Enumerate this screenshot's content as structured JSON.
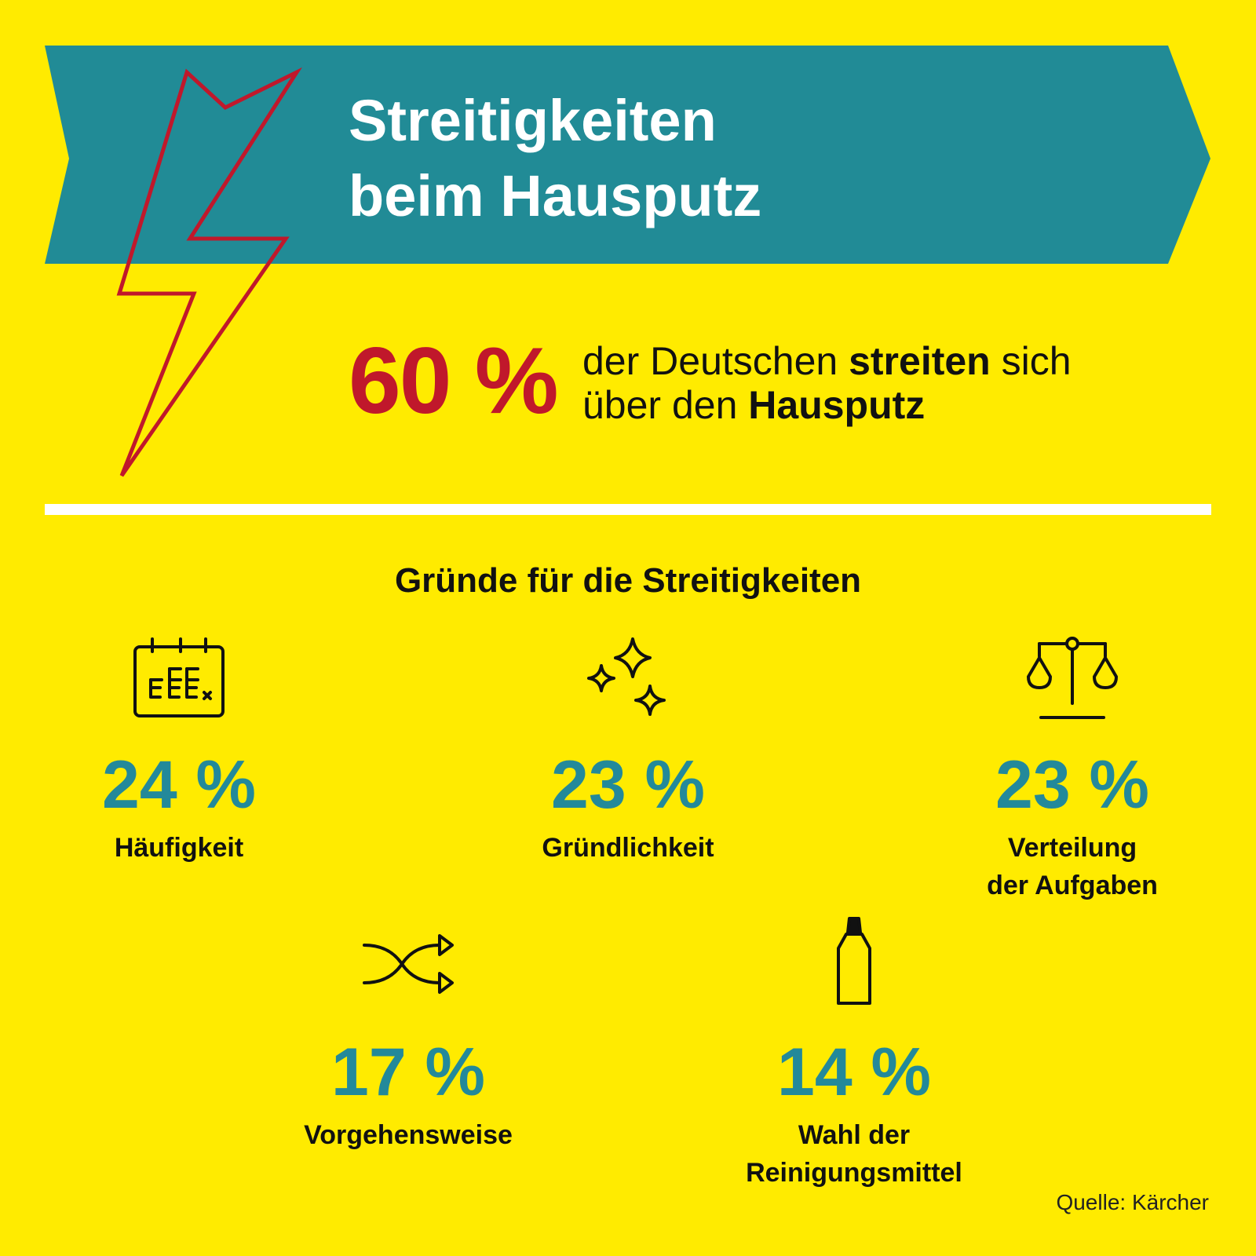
{
  "colors": {
    "background": "#FFEB00",
    "banner": "#218B96",
    "accent_red": "#C0182B",
    "accent_teal": "#23899A",
    "text": "#111111",
    "divider": "#FFFFFF"
  },
  "title": {
    "line1": "Streitigkeiten",
    "line2": "beim Hausputz"
  },
  "headline": {
    "percent": "60 %",
    "text_part1": "der Deutschen ",
    "text_bold1": "streiten",
    "text_part2": " sich",
    "text_part3": "über den ",
    "text_bold2": "Hausputz"
  },
  "section_title": "Gründe für die Streitigkeiten",
  "stats": [
    {
      "percent": "24 %",
      "value": 24,
      "label_line1": "Häufigkeit",
      "label_line2": "",
      "icon": "calendar-icon"
    },
    {
      "percent": "23 %",
      "value": 23,
      "label_line1": "Gründlichkeit",
      "label_line2": "",
      "icon": "sparkle-icon"
    },
    {
      "percent": "23 %",
      "value": 23,
      "label_line1": "Verteilung",
      "label_line2": "der Aufgaben",
      "icon": "scale-icon"
    },
    {
      "percent": "17 %",
      "value": 17,
      "label_line1": "Vorgehensweise",
      "label_line2": "",
      "icon": "shuffle-icon"
    },
    {
      "percent": "14 %",
      "value": 14,
      "label_line1": "Wahl der",
      "label_line2": "Reinigungsmittel",
      "icon": "bottle-icon"
    }
  ],
  "source": "Quelle: Kärcher"
}
